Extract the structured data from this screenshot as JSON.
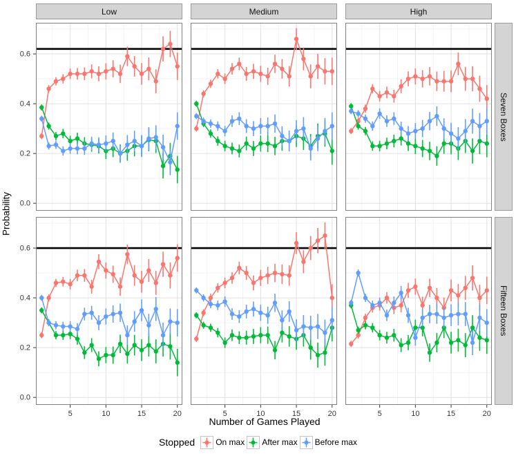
{
  "figure": {
    "y_axis_label": "Probability",
    "x_axis_label": "Number of Games Played",
    "col_labels": [
      "Low",
      "Medium",
      "High"
    ],
    "row_labels": [
      "Seven Boxes",
      "Fifteen Boxes"
    ]
  },
  "legend": {
    "title": "Stopped",
    "items": [
      {
        "label": "On max",
        "color": "#F8766D"
      },
      {
        "label": "After max",
        "color": "#00BA38"
      },
      {
        "label": "Before max",
        "color": "#619CFF"
      }
    ]
  },
  "style": {
    "panel_border": "#808080",
    "grid_major": "#e0e0e0",
    "grid_minor": "#efefef",
    "strip_bg": "#d4d4d4",
    "ref_line_color": "#000000",
    "tick_label_color": "#333333"
  },
  "chart_data": {
    "type": "line",
    "title": "",
    "xlabel": "Number of Games Played",
    "ylabel": "Probability",
    "x": [
      1,
      2,
      3,
      4,
      5,
      6,
      7,
      8,
      9,
      10,
      11,
      12,
      13,
      14,
      15,
      16,
      17,
      18,
      19,
      20
    ],
    "x_ticks": [
      5,
      10,
      15,
      20
    ],
    "y_ticks": [
      0.0,
      0.2,
      0.4,
      0.6
    ],
    "y_tick_labels": [
      "0.0",
      "0.2",
      "0.4",
      "0.6"
    ],
    "xlim": [
      0.2,
      20.7
    ],
    "ylim": [
      -0.03,
      0.725
    ],
    "grid_minor_x": [
      2.5,
      7.5,
      12.5,
      17.5
    ],
    "grid_minor_y": [
      0.1,
      0.3,
      0.5,
      0.7
    ],
    "legend_title": "Stopped",
    "legend_position": "bottom",
    "series_names": [
      "On max",
      "After max",
      "Before max"
    ],
    "series_colors": [
      "#F8766D",
      "#00BA38",
      "#619CFF"
    ],
    "errorbar_halfwidth": {
      "first_point": 0.012,
      "last_point": 0.055
    },
    "facets": [
      {
        "col": "Low",
        "row": "Seven Boxes",
        "ref_line_y": 0.62,
        "series": {
          "On max": [
            0.27,
            0.46,
            0.49,
            0.5,
            0.52,
            0.52,
            0.52,
            0.53,
            0.52,
            0.53,
            0.54,
            0.52,
            0.59,
            0.55,
            0.52,
            0.54,
            0.49,
            0.62,
            0.64,
            0.55
          ],
          "After max": [
            0.385,
            0.31,
            0.27,
            0.28,
            0.25,
            0.26,
            0.24,
            0.235,
            0.23,
            0.21,
            0.22,
            0.2,
            0.21,
            0.23,
            0.23,
            0.255,
            0.25,
            0.15,
            0.19,
            0.135
          ],
          "Before max": [
            0.34,
            0.23,
            0.235,
            0.21,
            0.22,
            0.22,
            0.22,
            0.24,
            0.235,
            0.24,
            0.25,
            0.2,
            0.235,
            0.25,
            0.23,
            0.26,
            0.265,
            0.225,
            0.165,
            0.31
          ]
        }
      },
      {
        "col": "Medium",
        "row": "Seven Boxes",
        "ref_line_y": 0.62,
        "series": {
          "On max": [
            0.3,
            0.44,
            0.48,
            0.52,
            0.5,
            0.54,
            0.56,
            0.52,
            0.53,
            0.52,
            0.51,
            0.56,
            0.54,
            0.51,
            0.66,
            0.58,
            0.51,
            0.55,
            0.53,
            0.53
          ],
          "After max": [
            0.4,
            0.32,
            0.28,
            0.25,
            0.23,
            0.22,
            0.21,
            0.24,
            0.22,
            0.24,
            0.24,
            0.23,
            0.25,
            0.25,
            0.27,
            0.26,
            0.23,
            0.27,
            0.28,
            0.21
          ],
          "Before max": [
            0.35,
            0.33,
            0.32,
            0.31,
            0.29,
            0.33,
            0.34,
            0.31,
            0.3,
            0.31,
            0.31,
            0.32,
            0.27,
            0.25,
            0.29,
            0.3,
            0.22,
            0.26,
            0.29,
            0.31
          ]
        }
      },
      {
        "col": "High",
        "row": "Seven Boxes",
        "ref_line_y": 0.62,
        "series": {
          "On max": [
            0.29,
            0.33,
            0.38,
            0.46,
            0.43,
            0.445,
            0.43,
            0.47,
            0.5,
            0.51,
            0.5,
            0.51,
            0.49,
            0.49,
            0.49,
            0.56,
            0.5,
            0.5,
            0.46,
            0.42
          ],
          "After max": [
            0.39,
            0.31,
            0.29,
            0.23,
            0.23,
            0.24,
            0.25,
            0.26,
            0.24,
            0.23,
            0.22,
            0.21,
            0.19,
            0.24,
            0.24,
            0.22,
            0.25,
            0.21,
            0.25,
            0.24
          ],
          "Before max": [
            0.37,
            0.36,
            0.34,
            0.31,
            0.36,
            0.33,
            0.34,
            0.3,
            0.28,
            0.29,
            0.3,
            0.33,
            0.35,
            0.3,
            0.28,
            0.26,
            0.29,
            0.33,
            0.31,
            0.33
          ]
        }
      },
      {
        "col": "Low",
        "row": "Fifteen Boxes",
        "ref_line_y": 0.6,
        "series": {
          "On max": [
            0.25,
            0.4,
            0.46,
            0.465,
            0.455,
            0.49,
            0.49,
            0.445,
            0.545,
            0.51,
            0.495,
            0.445,
            0.575,
            0.49,
            0.465,
            0.51,
            0.46,
            0.535,
            0.49,
            0.56
          ],
          "After max": [
            0.35,
            0.3,
            0.25,
            0.25,
            0.255,
            0.235,
            0.18,
            0.21,
            0.155,
            0.17,
            0.17,
            0.215,
            0.175,
            0.21,
            0.19,
            0.21,
            0.185,
            0.215,
            0.205,
            0.14
          ],
          "Before max": [
            0.4,
            0.3,
            0.29,
            0.285,
            0.285,
            0.275,
            0.335,
            0.34,
            0.3,
            0.325,
            0.335,
            0.34,
            0.25,
            0.305,
            0.35,
            0.29,
            0.355,
            0.25,
            0.305,
            0.3
          ]
        }
      },
      {
        "col": "Medium",
        "row": "Fifteen Boxes",
        "ref_line_y": 0.6,
        "series": {
          "On max": [
            0.235,
            0.34,
            0.4,
            0.44,
            0.46,
            0.48,
            0.52,
            0.5,
            0.46,
            0.48,
            0.49,
            0.5,
            0.495,
            0.49,
            0.62,
            0.545,
            0.6,
            0.63,
            0.65,
            0.4
          ],
          "After max": [
            0.33,
            0.29,
            0.28,
            0.26,
            0.22,
            0.25,
            0.24,
            0.24,
            0.245,
            0.25,
            0.25,
            0.19,
            0.26,
            0.245,
            0.235,
            0.25,
            0.2,
            0.17,
            0.18,
            0.28
          ],
          "Before max": [
            0.43,
            0.4,
            0.375,
            0.37,
            0.385,
            0.335,
            0.325,
            0.345,
            0.355,
            0.34,
            0.33,
            0.38,
            0.31,
            0.345,
            0.27,
            0.285,
            0.28,
            0.285,
            0.26,
            0.31
          ]
        }
      },
      {
        "col": "High",
        "row": "Fifteen Boxes",
        "ref_line_y": 0.6,
        "series": {
          "On max": [
            0.215,
            0.25,
            0.32,
            0.36,
            0.37,
            0.4,
            0.36,
            0.37,
            0.43,
            0.445,
            0.37,
            0.44,
            0.4,
            0.36,
            0.43,
            0.41,
            0.44,
            0.48,
            0.4,
            0.43
          ],
          "After max": [
            0.37,
            0.27,
            0.29,
            0.28,
            0.25,
            0.24,
            0.25,
            0.21,
            0.22,
            0.28,
            0.28,
            0.18,
            0.22,
            0.28,
            0.22,
            0.23,
            0.21,
            0.28,
            0.24,
            0.23
          ],
          "Before max": [
            0.38,
            0.5,
            0.4,
            0.37,
            0.38,
            0.33,
            0.38,
            0.42,
            0.33,
            0.24,
            0.32,
            0.335,
            0.335,
            0.32,
            0.33,
            0.335,
            0.335,
            0.22,
            0.32,
            0.3
          ]
        }
      }
    ]
  }
}
